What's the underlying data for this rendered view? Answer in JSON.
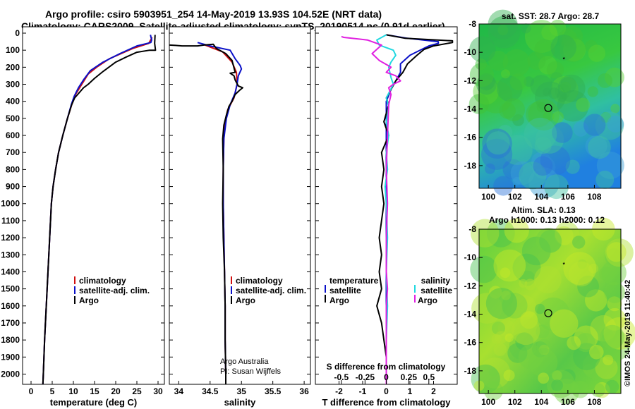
{
  "header": {
    "line1": "Argo profile: csiro 5903951_254 14-May-2019 13.93S 104.52E (NRT data)",
    "line2": "Climatology: CARS2009. Satellite-adjusted climatology: synTS_20190514.nc (0.91d earlier)"
  },
  "colors": {
    "climatology": "#d01010",
    "satellite": "#0a10c8",
    "argo": "#000000",
    "argo_salt": "#e020e0",
    "sat_salt": "#20d8e0"
  },
  "chart_data": [
    {
      "id": "temperature",
      "type": "line",
      "title": "",
      "xlabel": "temperature (deg C)",
      "ylabel": "depth",
      "xlim": [
        -2,
        31.5
      ],
      "ylim": [
        0,
        2060
      ],
      "xticks": [
        0,
        5,
        10,
        15,
        20,
        25,
        30
      ],
      "yticks": [
        0,
        100,
        200,
        300,
        400,
        500,
        600,
        700,
        800,
        900,
        1000,
        1100,
        1200,
        1300,
        1400,
        1500,
        1600,
        1700,
        1800,
        1900,
        2000
      ],
      "legend": [
        "climatology",
        "satellite-adj. clim.",
        "Argo"
      ],
      "series": [
        {
          "name": "climatology",
          "color": "#d01010",
          "points": [
            [
              28.6,
              25
            ],
            [
              27.8,
              60
            ],
            [
              24,
              90
            ],
            [
              18.5,
              150
            ],
            [
              15.5,
              200
            ],
            [
              13.5,
              240
            ],
            [
              12,
              300
            ],
            [
              10.5,
              360
            ],
            [
              9.6,
              420
            ],
            [
              8.6,
              500
            ],
            [
              7.5,
              600
            ],
            [
              6.5,
              700
            ],
            [
              5.8,
              800
            ],
            [
              5.2,
              900
            ],
            [
              4.8,
              1000
            ],
            [
              4.4,
              1200
            ],
            [
              4,
              1400
            ],
            [
              3.6,
              1600
            ],
            [
              3.2,
              1800
            ],
            [
              2.9,
              2000
            ],
            [
              2.8,
              2060
            ]
          ]
        },
        {
          "name": "satellite-adj. clim.",
          "color": "#0a10c8",
          "points": [
            [
              28.2,
              10
            ],
            [
              28.5,
              40
            ],
            [
              28.3,
              55
            ],
            [
              25,
              75
            ],
            [
              21,
              120
            ],
            [
              17,
              170
            ],
            [
              14,
              220
            ],
            [
              12.5,
              270
            ],
            [
              11.2,
              320
            ],
            [
              10.2,
              370
            ],
            [
              9.5,
              420
            ],
            [
              8.6,
              500
            ],
            [
              7.5,
              600
            ],
            [
              6.5,
              700
            ],
            [
              5.8,
              800
            ],
            [
              5.2,
              900
            ],
            [
              4.8,
              1000
            ],
            [
              4.4,
              1200
            ],
            [
              4,
              1400
            ],
            [
              3.6,
              1600
            ],
            [
              3.2,
              1800
            ],
            [
              2.9,
              2000
            ],
            [
              2.8,
              2060
            ]
          ]
        },
        {
          "name": "Argo",
          "color": "#000000",
          "points": [
            [
              29.3,
              10
            ],
            [
              29.2,
              60
            ],
            [
              29.4,
              100
            ],
            [
              28,
              100
            ],
            [
              25,
              112
            ],
            [
              22.5,
              140
            ],
            [
              20,
              170
            ],
            [
              17,
              225
            ],
            [
              15,
              265
            ],
            [
              13.5,
              300
            ],
            [
              12.4,
              320
            ],
            [
              10.3,
              380
            ],
            [
              9.6,
              420
            ],
            [
              8.6,
              500
            ],
            [
              7.5,
              600
            ],
            [
              6.5,
              700
            ],
            [
              5.8,
              800
            ],
            [
              5.2,
              900
            ],
            [
              4.8,
              1000
            ],
            [
              4.4,
              1200
            ],
            [
              4,
              1400
            ],
            [
              3.6,
              1600
            ],
            [
              3.2,
              1800
            ],
            [
              2.9,
              2000
            ],
            [
              2.8,
              2060
            ]
          ]
        }
      ]
    },
    {
      "id": "salinity",
      "type": "line",
      "title": "",
      "xlabel": "salinity",
      "ylabel": "",
      "xlim": [
        33.85,
        36.1
      ],
      "ylim": [
        0,
        2060
      ],
      "xticks": [
        34,
        34.5,
        35,
        35.5,
        36
      ],
      "legend": [
        "climatology",
        "satellite-adj. clim.",
        "Argo"
      ],
      "annotation": [
        "Argo Australia",
        "PI: Susan Wijffels"
      ],
      "series": [
        {
          "name": "climatology",
          "color": "#d01010",
          "points": [
            [
              34.42,
              70
            ],
            [
              34.7,
              110
            ],
            [
              34.85,
              170
            ],
            [
              34.92,
              230
            ],
            [
              34.93,
              300
            ],
            [
              34.88,
              380
            ],
            [
              34.78,
              450
            ],
            [
              34.74,
              520
            ],
            [
              34.72,
              620
            ],
            [
              34.71,
              800
            ],
            [
              34.71,
              1000
            ],
            [
              34.72,
              1200
            ],
            [
              34.73,
              1400
            ],
            [
              34.74,
              1600
            ],
            [
              34.74,
              1800
            ],
            [
              34.75,
              2000
            ],
            [
              34.75,
              2060
            ]
          ]
        },
        {
          "name": "satellite-adj. clim.",
          "color": "#0a10c8",
          "points": [
            [
              34.3,
              55
            ],
            [
              34.5,
              75
            ],
            [
              34.82,
              100
            ],
            [
              34.9,
              150
            ],
            [
              34.95,
              175
            ],
            [
              34.98,
              190
            ],
            [
              35,
              210
            ],
            [
              34.95,
              250
            ],
            [
              34.93,
              300
            ],
            [
              34.9,
              350
            ],
            [
              34.82,
              420
            ],
            [
              34.76,
              500
            ],
            [
              34.72,
              620
            ],
            [
              34.71,
              800
            ],
            [
              34.71,
              1000
            ],
            [
              34.72,
              1200
            ],
            [
              34.73,
              1400
            ],
            [
              34.74,
              1600
            ],
            [
              34.74,
              1800
            ],
            [
              34.75,
              2000
            ],
            [
              34.75,
              2060
            ]
          ]
        },
        {
          "name": "Argo",
          "color": "#000000",
          "points": [
            [
              33.85,
              70
            ],
            [
              33.95,
              72
            ],
            [
              34.05,
              75
            ],
            [
              34.3,
              75
            ],
            [
              34.4,
              70
            ],
            [
              34.55,
              65
            ],
            [
              34.6,
              90
            ],
            [
              34.75,
              120
            ],
            [
              34.85,
              160
            ],
            [
              34.9,
              230
            ],
            [
              34.82,
              235
            ],
            [
              34.88,
              250
            ],
            [
              34.9,
              275
            ],
            [
              34.95,
              310
            ],
            [
              35.02,
              320
            ],
            [
              34.97,
              335
            ],
            [
              34.9,
              360
            ],
            [
              34.85,
              400
            ],
            [
              34.8,
              430
            ],
            [
              34.76,
              480
            ],
            [
              34.72,
              540
            ],
            [
              34.7,
              620
            ],
            [
              34.71,
              800
            ],
            [
              34.7,
              1000
            ],
            [
              34.71,
              1200
            ],
            [
              34.73,
              1400
            ],
            [
              34.74,
              1600
            ],
            [
              34.74,
              1800
            ],
            [
              34.75,
              2000
            ],
            [
              34.75,
              2060
            ]
          ]
        }
      ]
    },
    {
      "id": "difference",
      "type": "line",
      "title": "",
      "xlabel": "T difference from climatology",
      "xlabel_top": "S difference from climatology",
      "ylabel": "",
      "xlim": [
        -3,
        3
      ],
      "ylim": [
        0,
        2060
      ],
      "xticks": [
        -2,
        -1,
        0,
        1,
        2
      ],
      "xticks_s": [
        "-0.5",
        "-0.25",
        "0",
        "0.25",
        "0.5"
      ],
      "legend_left": [
        "temperature",
        "satellite",
        "Argo"
      ],
      "legend_right": [
        "salinity",
        "satellite",
        "Argo"
      ],
      "series": [
        {
          "name": "T satellite",
          "color": "#0a10c8",
          "points": [
            [
              0,
              10
            ],
            [
              0.9,
              30
            ],
            [
              2.2,
              50
            ],
            [
              2.2,
              60
            ],
            [
              1.8,
              75
            ],
            [
              1.5,
              95
            ],
            [
              1,
              130
            ],
            [
              0.6,
              180
            ],
            [
              0.6,
              230
            ],
            [
              0.4,
              280
            ],
            [
              0.2,
              330
            ],
            [
              0,
              400
            ],
            [
              0,
              700
            ],
            [
              0,
              2060
            ]
          ]
        },
        {
          "name": "T Argo",
          "color": "#000000",
          "points": [
            [
              0,
              10
            ],
            [
              0.8,
              30
            ],
            [
              2.8,
              45
            ],
            [
              2.8,
              55
            ],
            [
              2,
              75
            ],
            [
              1.6,
              95
            ],
            [
              1.3,
              130
            ],
            [
              0.9,
              180
            ],
            [
              0.7,
              230
            ],
            [
              0.4,
              280
            ],
            [
              0.2,
              330
            ],
            [
              0,
              380
            ],
            [
              0.1,
              420
            ],
            [
              0,
              470
            ],
            [
              -0.1,
              520
            ],
            [
              0.1,
              600
            ],
            [
              -0.2,
              700
            ],
            [
              -0.1,
              800
            ],
            [
              -0.2,
              900
            ],
            [
              -0.1,
              1000
            ],
            [
              -0.2,
              1100
            ],
            [
              -0.3,
              1200
            ],
            [
              -0.2,
              1300
            ],
            [
              -0.3,
              1400
            ],
            [
              -0.2,
              1500
            ],
            [
              -0.4,
              1600
            ],
            [
              -0.2,
              1700
            ],
            [
              -0.1,
              1800
            ],
            [
              0,
              1900
            ],
            [
              0,
              2060
            ]
          ]
        },
        {
          "name": "S satellite",
          "color": "#20d8e0",
          "points": [
            [
              0,
              10
            ],
            [
              -0.4,
              40
            ],
            [
              -0.3,
              70
            ],
            [
              0.3,
              100
            ],
            [
              0.4,
              130
            ],
            [
              0.2,
              170
            ],
            [
              0.1,
              200
            ],
            [
              0.2,
              260
            ],
            [
              0.3,
              300
            ],
            [
              0,
              380
            ],
            [
              0.1,
              430
            ],
            [
              0,
              520
            ],
            [
              0.1,
              600
            ],
            [
              0,
              700
            ],
            [
              0.05,
              800
            ],
            [
              -0.05,
              900
            ],
            [
              0,
              1000
            ],
            [
              0.05,
              1200
            ],
            [
              0,
              1400
            ],
            [
              0.05,
              1600
            ],
            [
              0,
              1800
            ],
            [
              0,
              2060
            ]
          ]
        },
        {
          "name": "S Argo",
          "color": "#e020e0",
          "points": [
            [
              -1.9,
              20
            ],
            [
              -1.8,
              25
            ],
            [
              -0.8,
              40
            ],
            [
              -0.2,
              70
            ],
            [
              -0.6,
              120
            ],
            [
              -0.3,
              160
            ],
            [
              0.2,
              200
            ],
            [
              0,
              230
            ],
            [
              0.4,
              250
            ],
            [
              0.6,
              280
            ],
            [
              0.3,
              300
            ],
            [
              0.1,
              320
            ],
            [
              0.2,
              360
            ],
            [
              0.1,
              420
            ],
            [
              0.05,
              600
            ],
            [
              0,
              800
            ],
            [
              0.05,
              1000
            ],
            [
              0,
              1200
            ],
            [
              0,
              1400
            ],
            [
              0.05,
              1500
            ],
            [
              0,
              1600
            ],
            [
              0,
              2060
            ]
          ]
        }
      ]
    },
    {
      "id": "sst-map",
      "type": "heatmap",
      "title": "sat. SST: 28.7  Argo: 28.7",
      "xlim": [
        99.3,
        110
      ],
      "ylim": [
        -19.6,
        -8
      ],
      "xticks": [
        100,
        102,
        104,
        106,
        108
      ],
      "yticks": [
        -8,
        -10,
        -12,
        -14,
        -16,
        -18
      ],
      "float_position": [
        104.52,
        -13.93
      ]
    },
    {
      "id": "sla-map",
      "type": "heatmap",
      "title": "Altim. SLA: 0.13",
      "subtitle": "Argo h1000: 0.13 h2000: 0.12",
      "xlim": [
        99.3,
        110
      ],
      "ylim": [
        -19.6,
        -8
      ],
      "xticks": [
        100,
        102,
        104,
        106,
        108
      ],
      "yticks": [
        -8,
        -10,
        -12,
        -14,
        -16,
        -18
      ],
      "float_position": [
        104.52,
        -13.93
      ]
    }
  ],
  "footer": {
    "stamp": "©IMOS 24-May-2019 11:40:42"
  }
}
